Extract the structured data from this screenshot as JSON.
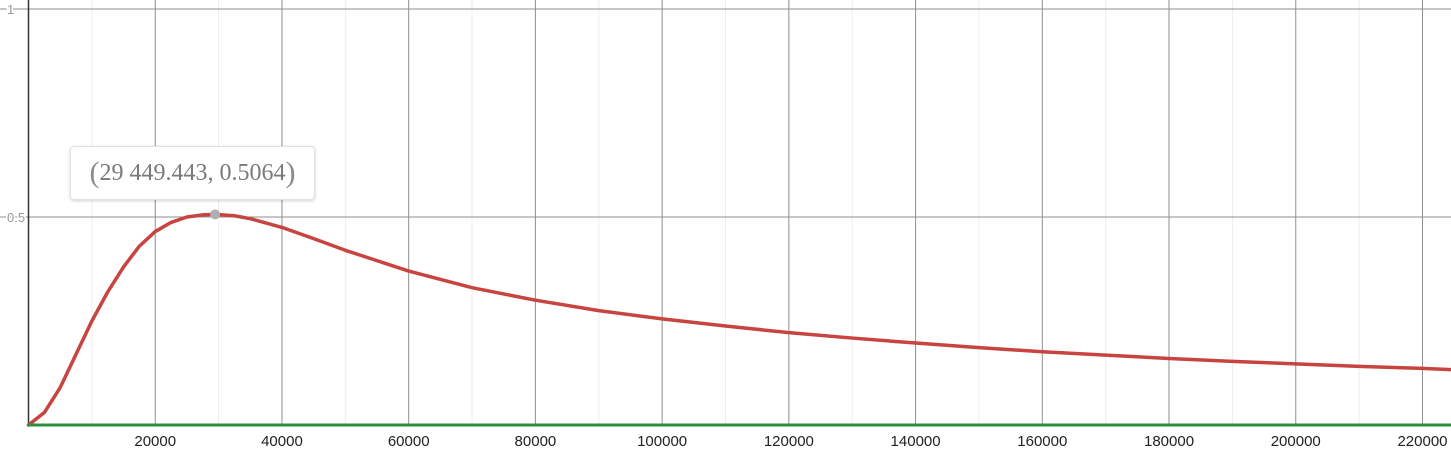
{
  "chart_data": {
    "type": "line",
    "xlim": [
      -4500,
      224500
    ],
    "ylim": [
      -0.005,
      1.005
    ],
    "grid": true,
    "xticks": [
      20000,
      40000,
      60000,
      80000,
      100000,
      120000,
      140000,
      160000,
      180000,
      200000,
      220000
    ],
    "xtick_labels": [
      "20000",
      "40000",
      "60000",
      "80000",
      "100000",
      "120000",
      "140000",
      "160000",
      "180000",
      "200000",
      "220000"
    ],
    "yticks": [
      0.5,
      1
    ],
    "ytick_labels": [
      "0.5",
      "1"
    ],
    "series": [
      {
        "color": "#c74440",
        "x": [
          0,
          2500,
          5000,
          7500,
          10000,
          12500,
          15000,
          17500,
          20000,
          22500,
          25000,
          27500,
          29449,
          32500,
          35000,
          40000,
          45000,
          50000,
          60000,
          70000,
          80000,
          90000,
          100000,
          110000,
          120000,
          130000,
          140000,
          150000,
          160000,
          170000,
          180000,
          190000,
          200000,
          210000,
          220000,
          224500
        ],
        "y": [
          0,
          0.03,
          0.09,
          0.17,
          0.25,
          0.32,
          0.38,
          0.43,
          0.465,
          0.487,
          0.5,
          0.505,
          0.5064,
          0.503,
          0.496,
          0.475,
          0.448,
          0.42,
          0.37,
          0.33,
          0.3,
          0.275,
          0.255,
          0.238,
          0.222,
          0.209,
          0.197,
          0.186,
          0.176,
          0.168,
          0.16,
          0.153,
          0.147,
          0.141,
          0.136,
          0.133
        ]
      },
      {
        "color": "#2d8f3c",
        "x": [
          0,
          224500
        ],
        "y": [
          0,
          0
        ]
      }
    ],
    "highlight_point": {
      "x": 29449.443,
      "y": 0.5064,
      "label_x": "29 449.443",
      "label_y": "0.5064",
      "color": "#b0b0b0"
    }
  }
}
